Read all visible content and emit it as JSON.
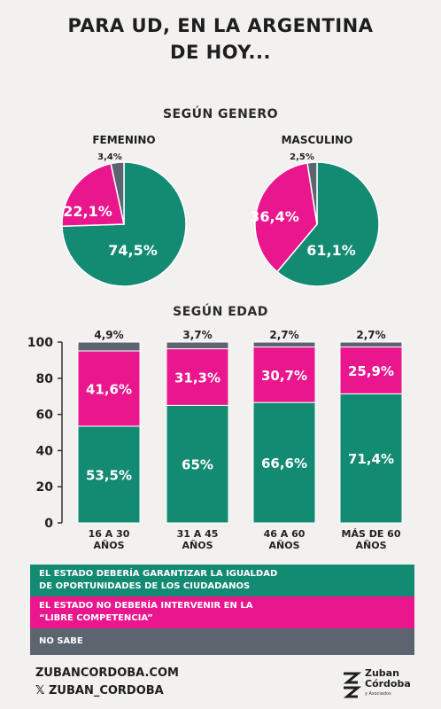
{
  "title_line1": "PARA UD, EN LA ARGENTINA",
  "title_line2": "DE HOY...",
  "colors": {
    "green": "#138a72",
    "pink": "#ea168d",
    "gray": "#5c6470"
  },
  "chart_data": [
    {
      "type": "pie",
      "title": "SEGÚN GENERO",
      "pies": [
        {
          "label": "FEMENINO",
          "slices": [
            {
              "category": "green",
              "value": 74.5,
              "label": "74,5%"
            },
            {
              "category": "pink",
              "value": 22.1,
              "label": "22,1%"
            },
            {
              "category": "gray",
              "value": 3.4,
              "label": "3,4%"
            }
          ]
        },
        {
          "label": "MASCULINO",
          "slices": [
            {
              "category": "green",
              "value": 61.1,
              "label": "61,1%"
            },
            {
              "category": "pink",
              "value": 36.4,
              "label": "36,4%"
            },
            {
              "category": "gray",
              "value": 2.5,
              "label": "2,5%"
            }
          ]
        }
      ]
    },
    {
      "type": "bar",
      "stacked": true,
      "title": "SEGÚN EDAD",
      "categories": [
        [
          "16 A 30",
          "AÑOS"
        ],
        [
          "31 A 45",
          "AÑOS"
        ],
        [
          "46 A 60",
          "AÑOS"
        ],
        [
          "MÁS DE 60",
          "AÑOS"
        ]
      ],
      "series": [
        {
          "key": "green",
          "values": [
            53.5,
            65,
            66.6,
            71.4
          ],
          "labels": [
            "53,5%",
            "65%",
            "66,6%",
            "71,4%"
          ]
        },
        {
          "key": "pink",
          "values": [
            41.6,
            31.3,
            30.7,
            25.9
          ],
          "labels": [
            "41,6%",
            "31,3%",
            "30,7%",
            "25,9%"
          ]
        },
        {
          "key": "gray",
          "values": [
            4.9,
            3.7,
            2.7,
            2.7
          ],
          "labels": [
            "4,9%",
            "3,7%",
            "2,7%",
            "2,7%"
          ]
        }
      ],
      "ylim": [
        0,
        100
      ],
      "yticks": [
        0,
        20,
        40,
        60,
        80,
        100
      ],
      "grid": false
    }
  ],
  "legend": [
    {
      "key": "green",
      "lines": [
        "EL ESTADO DEBERÍA GARANTIZAR LA IGUALDAD",
        "DE OPORTUNIDADES DE LOS CIUDADANOS"
      ]
    },
    {
      "key": "pink",
      "lines": [
        "EL ESTADO NO DEBERÍA INTERVENIR EN LA",
        "“LIBRE COMPETENCIA”"
      ]
    },
    {
      "key": "gray",
      "lines": [
        "NO SABE"
      ]
    }
  ],
  "footer": {
    "website": "ZUBANCORDOBA.COM",
    "social": "𝕏 ZUBAN_CORDOBA",
    "logo_line1": "Zuban",
    "logo_line2": "Córdoba",
    "logo_small": "y Asociados"
  }
}
